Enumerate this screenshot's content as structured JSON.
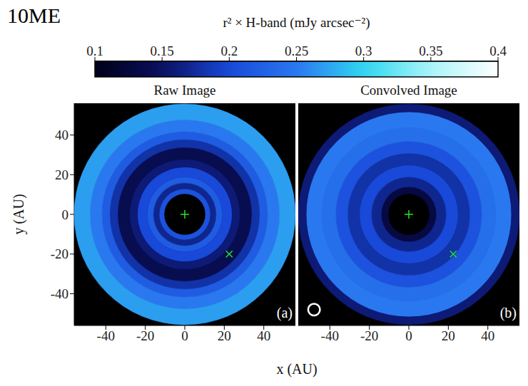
{
  "title": "10ME",
  "xlabel": "x (AU)",
  "colorbar": {
    "label": "r² × H-band (mJy arcsec⁻²)",
    "range": [
      0.1,
      0.4
    ],
    "ticks": [
      0.1,
      0.15,
      0.2,
      0.25,
      0.3,
      0.35,
      0.4
    ]
  },
  "chart_data": [
    {
      "type": "heatmap",
      "title": "Raw Image",
      "panel_label": "(a)",
      "ylabel": "y (AU)",
      "xlim": [
        -56,
        56
      ],
      "ylim": [
        -56,
        56
      ],
      "xticks": [
        -40,
        -20,
        0,
        20,
        40
      ],
      "yticks": [
        -40,
        -20,
        0,
        20,
        40
      ],
      "rings": {
        "r_edges": [
          10.5,
          13,
          16,
          19,
          24,
          28,
          34,
          38,
          42,
          48,
          56
        ],
        "values": [
          0.21,
          0.17,
          0.22,
          0.2,
          0.16,
          0.14,
          0.18,
          0.22,
          0.25,
          0.27
        ]
      },
      "star": {
        "x": 0,
        "y": 0,
        "marker": "plus",
        "color": "#22dd22"
      },
      "planet": {
        "x": 22.5,
        "y": -20,
        "marker": "cross",
        "color": "#22dd22"
      }
    },
    {
      "type": "heatmap",
      "title": "Convolved Image",
      "panel_label": "(b)",
      "tick_labels": "x",
      "xlim": [
        -56,
        56
      ],
      "ylim": [
        -56,
        56
      ],
      "xticks": [
        -40,
        -20,
        0,
        20,
        40
      ],
      "rings": {
        "r_edges": [
          10.5,
          14,
          19,
          25,
          31,
          37,
          44,
          52,
          56
        ],
        "values": [
          0.13,
          0.17,
          0.2,
          0.18,
          0.21,
          0.24,
          0.25,
          0.16
        ]
      },
      "star": {
        "x": 0,
        "y": 0,
        "marker": "plus",
        "color": "#22dd22"
      },
      "planet": {
        "x": 22.5,
        "y": -20,
        "marker": "cross",
        "color": "#22dd22"
      },
      "beam": {
        "x": -48,
        "y": -48,
        "radius": 3
      }
    }
  ]
}
